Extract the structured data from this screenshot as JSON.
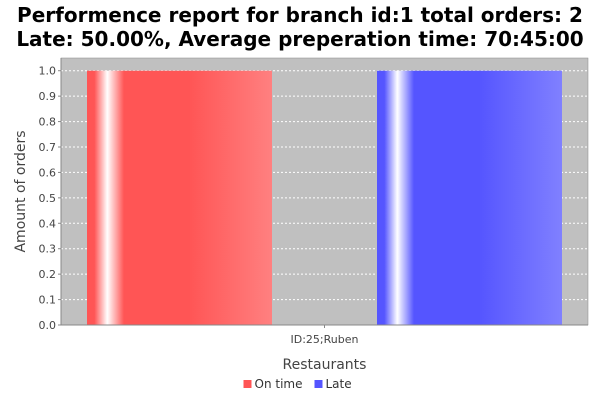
{
  "chart_data": {
    "type": "bar",
    "title": "Performence report for branch id:1 total orders: 2",
    "subtitle": "Late: 50.00%, Average preperation time: 70:45:00",
    "xlabel": "Restaurants",
    "ylabel": "Amount of orders",
    "categories": [
      "ID:25;Ruben"
    ],
    "series": [
      {
        "name": "On time",
        "values": [
          1.0
        ],
        "color": "#ff5555"
      },
      {
        "name": "Late",
        "values": [
          1.0
        ],
        "color": "#5555ff"
      }
    ],
    "ylim": [
      0,
      1.05
    ],
    "yticks": [
      "0.0",
      "0.1",
      "0.2",
      "0.3",
      "0.4",
      "0.5",
      "0.6",
      "0.7",
      "0.8",
      "0.9",
      "1.0"
    ],
    "grid": true,
    "legend_position": "bottom",
    "plot_background": "#c0c0c0"
  }
}
